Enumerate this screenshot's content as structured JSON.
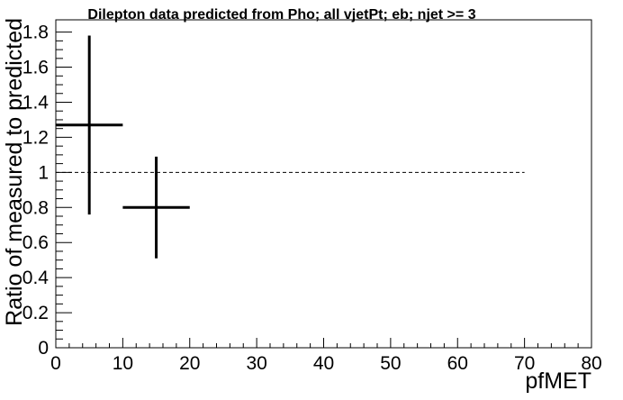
{
  "chart_data": {
    "type": "scatter",
    "title": "Dilepton data predicted from Pho; all vjetPt; eb; njet >= 3",
    "xlabel": "pfMET",
    "ylabel": "Ratio of measured to predicted",
    "xlim": [
      0,
      80
    ],
    "ylim": [
      0,
      1.87
    ],
    "x_ticks": [
      0,
      10,
      20,
      30,
      40,
      50,
      60,
      70,
      80
    ],
    "x_tick_labels": [
      "0",
      "10",
      "20",
      "30",
      "40",
      "50",
      "60",
      "70",
      "80"
    ],
    "y_ticks": [
      0,
      0.2,
      0.4,
      0.6,
      0.8,
      1,
      1.2,
      1.4,
      1.6,
      1.8
    ],
    "y_tick_labels": [
      "0",
      "0.2",
      "0.4",
      "0.6",
      "0.8",
      "1",
      "1.2",
      "1.4",
      "1.6",
      "1.8"
    ],
    "grid": false,
    "legend": "none",
    "series": [
      {
        "points": [
          {
            "x": 5,
            "y": 1.27,
            "x_low": 0,
            "x_high": 10,
            "y_low": 0.76,
            "y_high": 1.78
          },
          {
            "x": 15,
            "y": 0.8,
            "x_low": 10,
            "x_high": 20,
            "y_low": 0.51,
            "y_high": 1.09
          }
        ]
      }
    ],
    "reference_line": {
      "y": 1,
      "x_start": 0,
      "x_end": 70,
      "style": "dashed"
    },
    "colors": {
      "marker": "#000000",
      "reference": "#000000",
      "background": "#ffffff"
    }
  }
}
